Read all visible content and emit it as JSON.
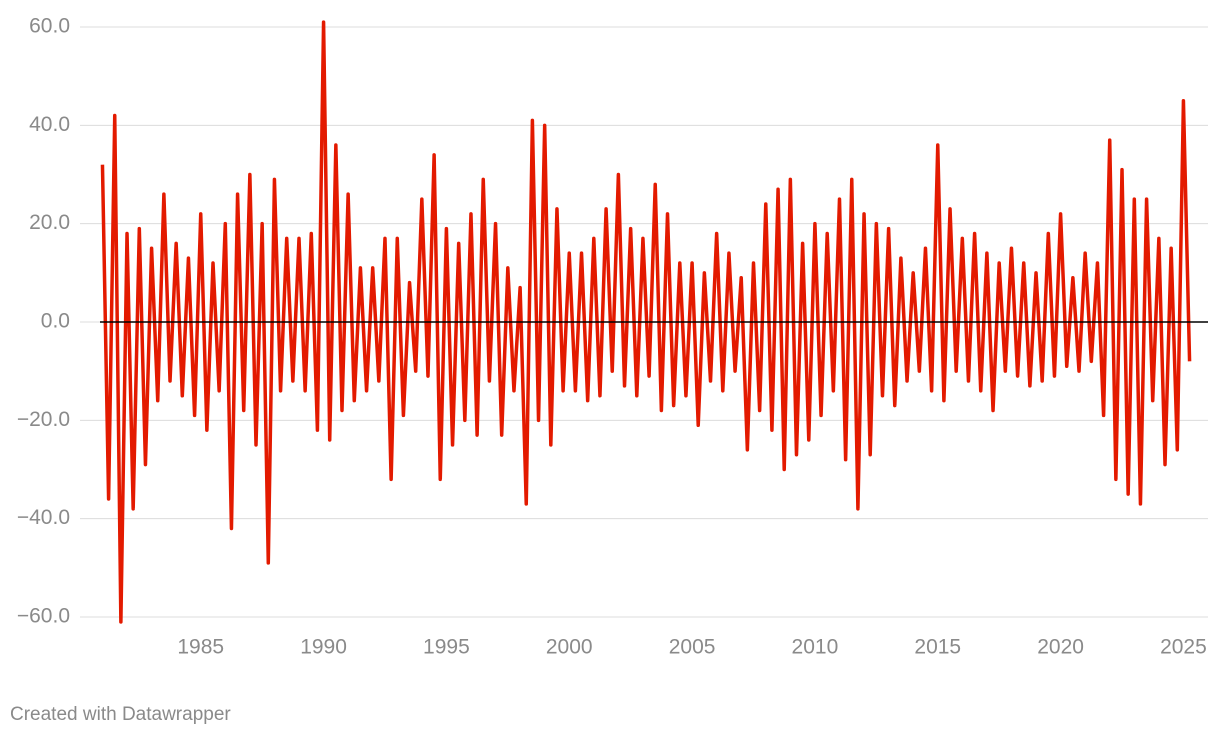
{
  "chart_data": {
    "type": "line",
    "credit": "Created with Datawrapper",
    "xlim": [
      1980.9,
      2026.0
    ],
    "xticks": [
      1985,
      1990,
      1995,
      2000,
      2005,
      2010,
      2015,
      2020,
      2025
    ],
    "ylim": [
      -60,
      60
    ],
    "yticks": [
      {
        "value": -60,
        "label": "−60.0"
      },
      {
        "value": -40,
        "label": "−40.0"
      },
      {
        "value": -20,
        "label": "−20.0"
      },
      {
        "value": 0,
        "label": "0.0"
      },
      {
        "value": 20,
        "label": "20.0"
      },
      {
        "value": 40,
        "label": "40.0"
      },
      {
        "value": 60,
        "label": "60.0"
      }
    ],
    "grid": true,
    "x": [
      1981,
      1981.25,
      1981.5,
      1981.75,
      1982,
      1982.25,
      1982.5,
      1982.75,
      1983,
      1983.25,
      1983.5,
      1983.75,
      1984,
      1984.25,
      1984.5,
      1984.75,
      1985,
      1985.25,
      1985.5,
      1985.75,
      1986,
      1986.25,
      1986.5,
      1986.75,
      1987,
      1987.25,
      1987.5,
      1987.75,
      1988,
      1988.25,
      1988.5,
      1988.75,
      1989,
      1989.25,
      1989.5,
      1989.75,
      1990,
      1990.25,
      1990.5,
      1990.75,
      1991,
      1991.25,
      1991.5,
      1991.75,
      1992,
      1992.25,
      1992.5,
      1992.75,
      1993,
      1993.25,
      1993.5,
      1993.75,
      1994,
      1994.25,
      1994.5,
      1994.75,
      1995,
      1995.25,
      1995.5,
      1995.75,
      1996,
      1996.25,
      1996.5,
      1996.75,
      1997,
      1997.25,
      1997.5,
      1997.75,
      1998,
      1998.25,
      1998.5,
      1998.75,
      1999,
      1999.25,
      1999.5,
      1999.75,
      2000,
      2000.25,
      2000.5,
      2000.75,
      2001,
      2001.25,
      2001.5,
      2001.75,
      2002,
      2002.25,
      2002.5,
      2002.75,
      2003,
      2003.25,
      2003.5,
      2003.75,
      2004,
      2004.25,
      2004.5,
      2004.75,
      2005,
      2005.25,
      2005.5,
      2005.75,
      2006,
      2006.25,
      2006.5,
      2006.75,
      2007,
      2007.25,
      2007.5,
      2007.75,
      2008,
      2008.25,
      2008.5,
      2008.75,
      2009,
      2009.25,
      2009.5,
      2009.75,
      2010,
      2010.25,
      2010.5,
      2010.75,
      2011,
      2011.25,
      2011.5,
      2011.75,
      2012,
      2012.25,
      2012.5,
      2012.75,
      2013,
      2013.25,
      2013.5,
      2013.75,
      2014,
      2014.25,
      2014.5,
      2014.75,
      2015,
      2015.25,
      2015.5,
      2015.75,
      2016,
      2016.25,
      2016.5,
      2016.75,
      2017,
      2017.25,
      2017.5,
      2017.75,
      2018,
      2018.25,
      2018.5,
      2018.75,
      2019,
      2019.25,
      2019.5,
      2019.75,
      2020,
      2020.25,
      2020.5,
      2020.75,
      2021,
      2021.25,
      2021.5,
      2021.75,
      2022,
      2022.25,
      2022.5,
      2022.75,
      2023,
      2023.25,
      2023.5,
      2023.75,
      2024,
      2024.25,
      2024.5,
      2024.75,
      2025,
      2025.25
    ],
    "series": [
      {
        "color": "#e31a00",
        "values": [
          32,
          -36,
          42,
          -61,
          18,
          -38,
          19,
          -29,
          15,
          -16,
          26,
          -12,
          16,
          -15,
          13,
          -19,
          22,
          -22,
          12,
          -14,
          20,
          -42,
          26,
          -18,
          30,
          -25,
          20,
          -49,
          29,
          -14,
          17,
          -12,
          17,
          -14,
          18,
          -22,
          61,
          -24,
          36,
          -18,
          26,
          -16,
          11,
          -14,
          11,
          -12,
          17,
          -32,
          17,
          -19,
          8,
          -10,
          25,
          -11,
          34,
          -32,
          19,
          -25,
          16,
          -20,
          22,
          -23,
          29,
          -12,
          20,
          -23,
          11,
          -14,
          7,
          -37,
          41,
          -20,
          40,
          -25,
          23,
          -14,
          14,
          -14,
          14,
          -16,
          17,
          -15,
          23,
          -10,
          30,
          -13,
          19,
          -15,
          17,
          -11,
          28,
          -18,
          22,
          -17,
          12,
          -15,
          12,
          -21,
          10,
          -12,
          18,
          -14,
          14,
          -10,
          9,
          -26,
          12,
          -18,
          24,
          -22,
          27,
          -30,
          29,
          -27,
          16,
          -24,
          20,
          -19,
          18,
          -14,
          25,
          -28,
          29,
          -38,
          22,
          -27,
          20,
          -15,
          19,
          -17,
          13,
          -12,
          10,
          -10,
          15,
          -14,
          36,
          -16,
          23,
          -10,
          17,
          -12,
          18,
          -14,
          14,
          -18,
          12,
          -10,
          15,
          -11,
          12,
          -13,
          10,
          -12,
          18,
          -11,
          22,
          -9,
          9,
          -10,
          14,
          -8,
          12,
          -19,
          37,
          -32,
          31,
          -35,
          25,
          -37,
          25,
          -16,
          17,
          -29,
          15,
          -26,
          45,
          -8
        ]
      }
    ]
  }
}
